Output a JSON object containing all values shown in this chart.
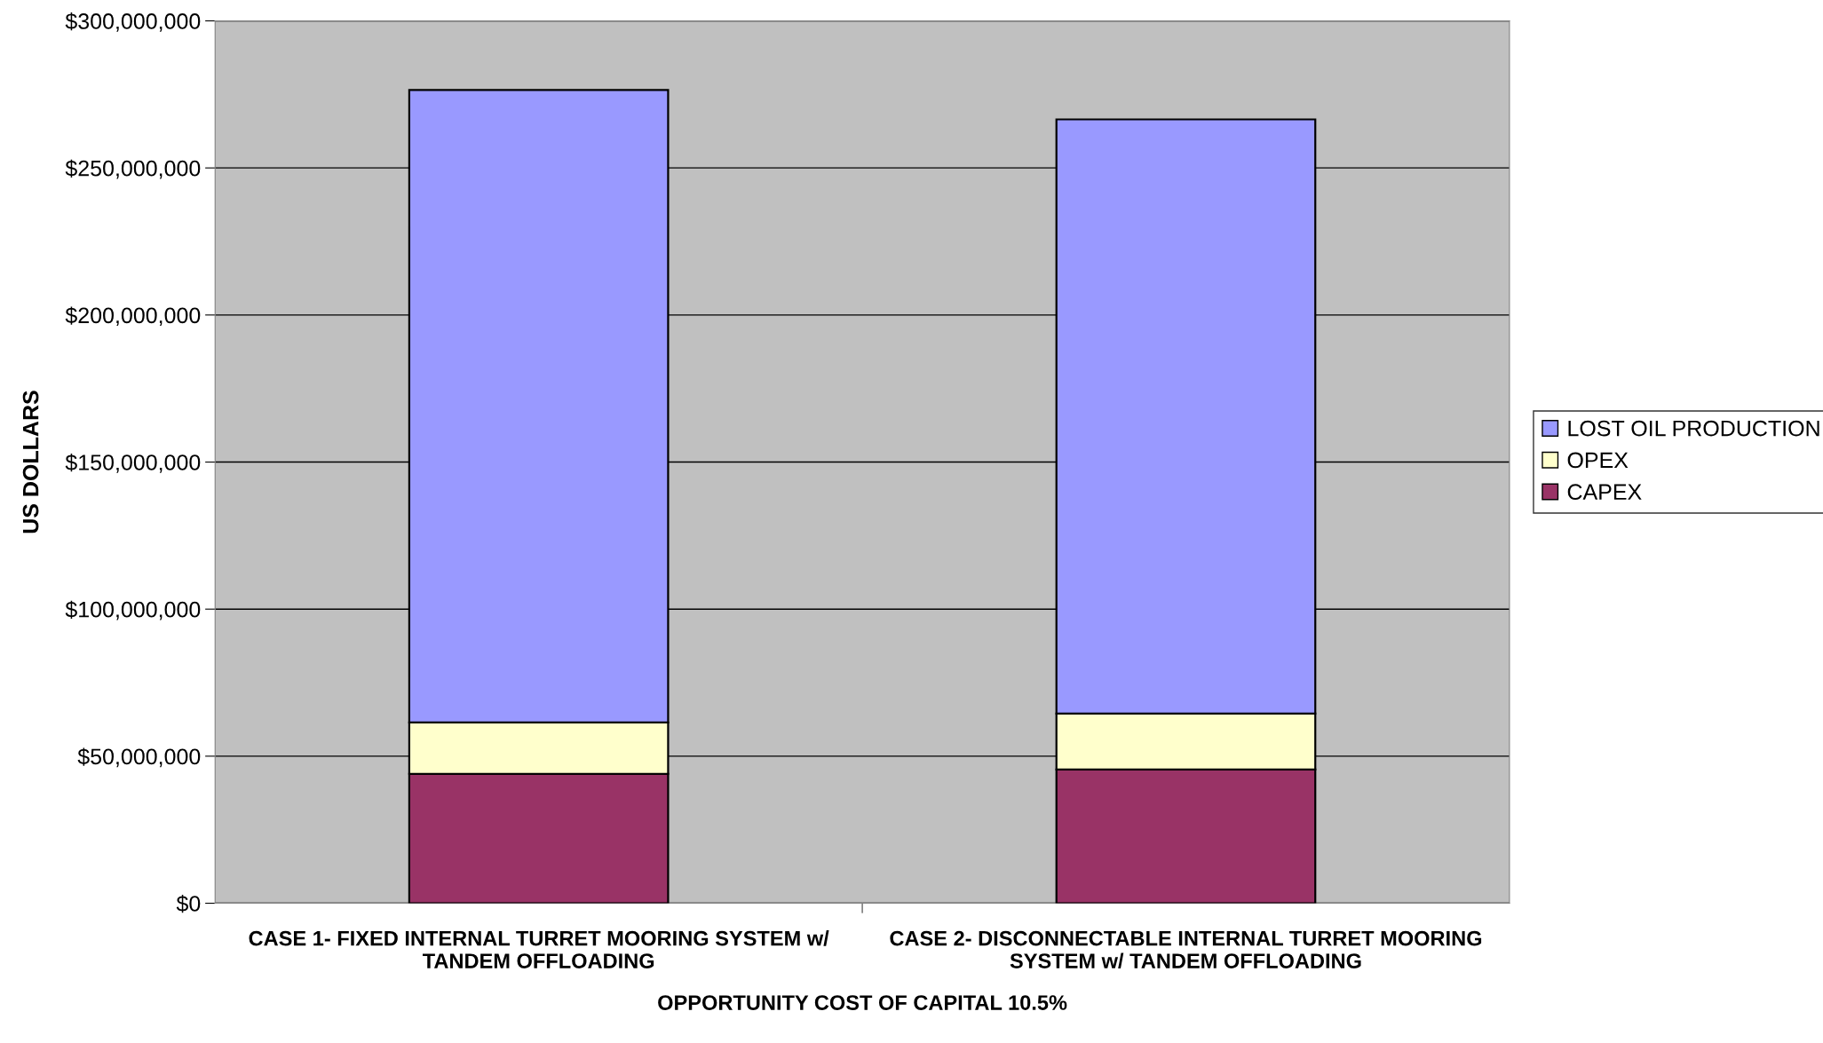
{
  "chart_data": {
    "type": "bar",
    "stacked": true,
    "categories": [
      "CASE 1- FIXED INTERNAL TURRET MOORING SYSTEM w/\nTANDEM OFFLOADING",
      "CASE 2- DISCONNECTABLE INTERNAL TURRET MOORING\nSYSTEM w/ TANDEM OFFLOADING"
    ],
    "series": [
      {
        "name": "CAPEX",
        "color": "#993366",
        "values": [
          44000000,
          45500000
        ]
      },
      {
        "name": "OPEX",
        "color": "#ffffcc",
        "values": [
          17500000,
          19000000
        ]
      },
      {
        "name": "LOST OIL PRODUCTION",
        "color": "#9999ff",
        "values": [
          215000000,
          202000000
        ]
      }
    ],
    "xlabel": "OPPORTUNITY COST OF CAPITAL 10.5%",
    "ylabel": "US DOLLARS",
    "ylim": [
      0,
      300000000
    ],
    "yticks": [
      {
        "value": 0,
        "label": "$0"
      },
      {
        "value": 50000000,
        "label": "$50,000,000"
      },
      {
        "value": 100000000,
        "label": "$100,000,000"
      },
      {
        "value": 150000000,
        "label": "$150,000,000"
      },
      {
        "value": 200000000,
        "label": "$200,000,000"
      },
      {
        "value": 250000000,
        "label": "$250,000,000"
      },
      {
        "value": 300000000,
        "label": "$300,000,000"
      }
    ],
    "grid": "y",
    "legend": "right"
  }
}
